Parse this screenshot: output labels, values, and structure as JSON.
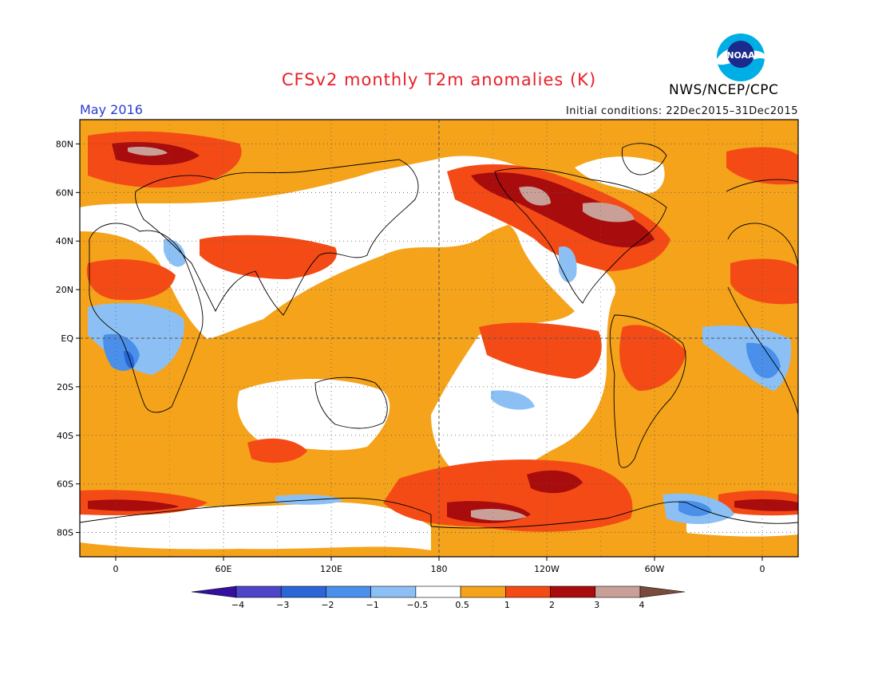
{
  "header": {
    "title": "CFSv2 monthly T2m anomalies (K)",
    "agency": "NWS/NCEP/CPC",
    "month": "May 2016",
    "initial_conditions": "Initial conditions: 22Dec2015–31Dec2015",
    "logo_text": "NOAA"
  },
  "map": {
    "lat_labels": [
      "80N",
      "60N",
      "40N",
      "20N",
      "EQ",
      "20S",
      "40S",
      "60S",
      "80S"
    ],
    "lon_labels": [
      "0",
      "60E",
      "120E",
      "180",
      "120W",
      "60W",
      "0"
    ],
    "lat_values": [
      80,
      60,
      40,
      20,
      0,
      -20,
      -40,
      -60,
      -80
    ],
    "lon_values": [
      0,
      60,
      120,
      180,
      240,
      300,
      360
    ],
    "lon_range": [
      -20,
      380
    ],
    "lat_range": [
      -90,
      90
    ],
    "background_color": "#f5a31a"
  },
  "colorbar": {
    "tick_labels": [
      "−4",
      "−3",
      "−2",
      "−1",
      "−0.5",
      "0.5",
      "1",
      "2",
      "3",
      "4"
    ],
    "colors": [
      "#3410a0",
      "#4e45c8",
      "#2a66d6",
      "#4a90ea",
      "#8cc0f4",
      "#ffffff",
      "#f5a31a",
      "#f44b16",
      "#a80c0c",
      "#c8a098",
      "#7a4a3a"
    ]
  }
}
